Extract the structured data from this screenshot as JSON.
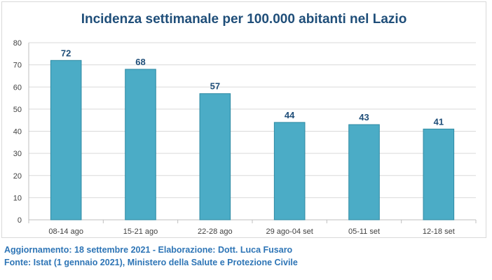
{
  "chart_data": {
    "type": "bar",
    "title": "Incidenza settimanale per 100.000 abitanti nel Lazio",
    "categories": [
      "08-14 ago",
      "15-21 ago",
      "22-28 ago",
      "29 ago-04 set",
      "05-11 set",
      "12-18 set"
    ],
    "values": [
      72,
      68,
      57,
      44,
      43,
      41
    ],
    "data_labels": [
      "72",
      "68",
      "57",
      "44",
      "43",
      "41"
    ],
    "ylim": [
      0,
      80
    ],
    "yticks": [
      0,
      10,
      20,
      30,
      40,
      50,
      60,
      70,
      80
    ],
    "grid": true,
    "xlabel": "",
    "ylabel": "",
    "colors": {
      "bar": "#4bacc6",
      "bar_border": "#2f8aa3",
      "data_label": "#1f4e79",
      "grid": "#d9d9d9",
      "title": "#1f4e79"
    }
  },
  "footer": {
    "line1": "Aggiornamento: 18 settembre 2021 - Elaborazione: Dott. Luca Fusaro",
    "line2": "Fonte: Istat (1 gennaio 2021), Ministero della Salute e Protezione Civile"
  }
}
